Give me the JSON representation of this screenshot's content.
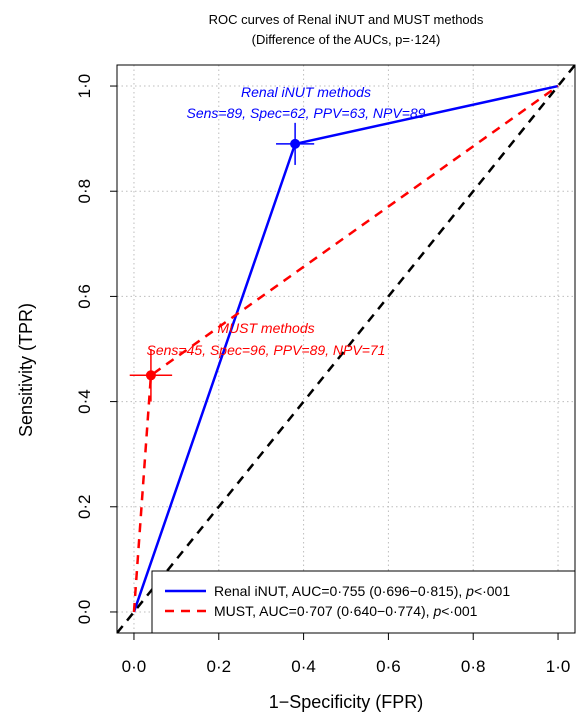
{
  "chart_data": {
    "type": "line",
    "title": "ROC curves of Renal iNUT and MUST methods",
    "subtitle": "(Difference of the AUCs, p=·124)",
    "xlabel": "1−Specificity (FPR)",
    "ylabel": "Sensitivity (TPR)",
    "xlim": [
      -0.04,
      1.04
    ],
    "ylim": [
      -0.04,
      1.04
    ],
    "xticks": [
      0,
      0.2,
      0.4,
      0.6,
      0.8,
      1.0
    ],
    "xtick_labels": [
      "0·0",
      "0·2",
      "0·4",
      "0·6",
      "0·8",
      "1·0"
    ],
    "yticks": [
      0,
      0.2,
      0.4,
      0.6,
      0.8,
      1.0
    ],
    "ytick_labels": [
      "0·0",
      "0·2",
      "0·4",
      "0·6",
      "0·8",
      "1·0"
    ],
    "grid": true,
    "legend_position": "bottom-right",
    "series": [
      {
        "name": "Renal iNUT",
        "legend": "Renal iNUT, AUC=0·755 (0·696−0·815), ",
        "legend_p": "p",
        "legend_tail": "<·001",
        "color": "#0000ff",
        "dash": "solid",
        "x": [
          0,
          0.38,
          1.0
        ],
        "y": [
          0,
          0.89,
          1.0
        ],
        "operating_point": {
          "x": 0.38,
          "y": 0.89,
          "xerr": 0.045,
          "yerr": 0.04
        },
        "annotation": [
          "Renal iNUT methods",
          "Sens=89, Spec=62, PPV=63, NPV=89"
        ]
      },
      {
        "name": "MUST",
        "legend": "MUST, AUC=0·707 (0·640−0·774), ",
        "legend_p": "p",
        "legend_tail": "<·001",
        "color": "#ff0000",
        "dash": "dashed",
        "x": [
          0,
          0.04,
          1.0
        ],
        "y": [
          0,
          0.45,
          1.0
        ],
        "operating_point": {
          "x": 0.04,
          "y": 0.45,
          "xerr": 0.05,
          "yerr": 0.05
        },
        "annotation": [
          "MUST methods",
          "Sens=45, Spec=96, PPV=89, NPV=71"
        ]
      }
    ],
    "reference_line": {
      "x": [
        -0.04,
        1.04
      ],
      "y": [
        -0.04,
        1.04
      ],
      "color": "#000000",
      "dash": "dashed"
    }
  }
}
